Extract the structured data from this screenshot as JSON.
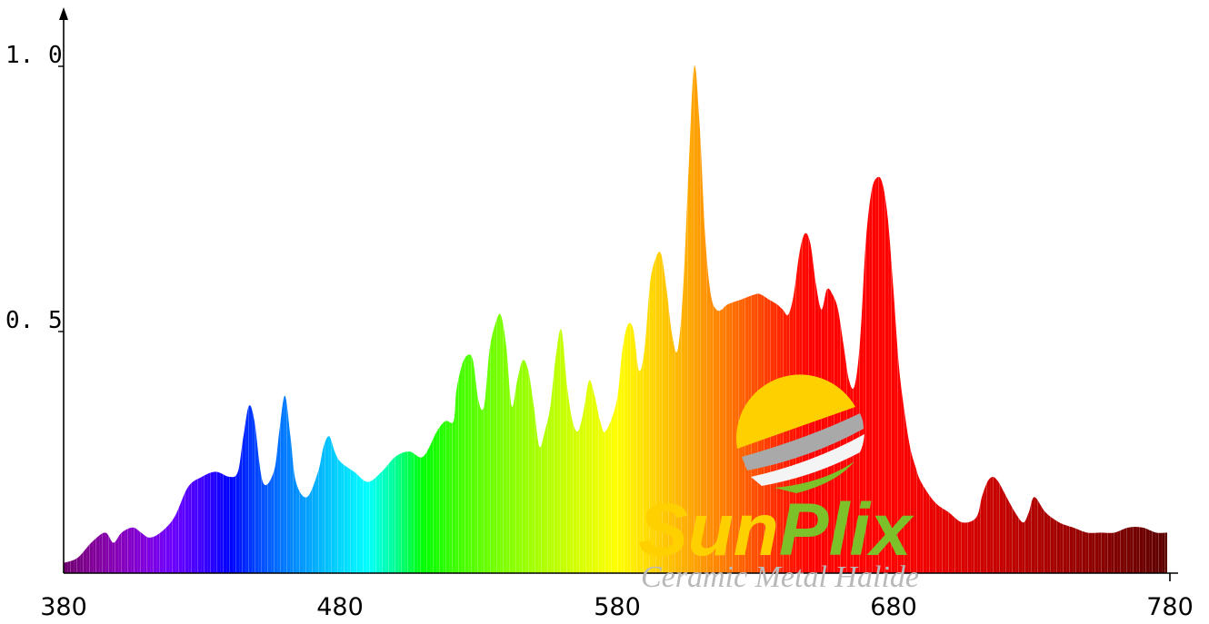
{
  "chart_data": {
    "type": "area",
    "title": "",
    "xlabel": "",
    "ylabel": "",
    "xlim": [
      380,
      780
    ],
    "ylim": [
      0,
      1.0
    ],
    "grid": false,
    "x_ticks": [
      "380",
      "480",
      "580",
      "680",
      "780"
    ],
    "y_ticks": [
      "0. 5",
      "1. 0"
    ],
    "series": [
      {
        "x": [
          380,
          385,
          390,
          395,
          398,
          401,
          405,
          408,
          411,
          415,
          420,
          425,
          430,
          435,
          440,
          443,
          445,
          447,
          449,
          452,
          456,
          458,
          460,
          462,
          464,
          468,
          472,
          474,
          476,
          478,
          480,
          485,
          490,
          495,
          500,
          505,
          510,
          515,
          518,
          521,
          522,
          524,
          526,
          528,
          530,
          532,
          534,
          536,
          538,
          540,
          542,
          544,
          546,
          548,
          550,
          552,
          554,
          556,
          558,
          560,
          562,
          564,
          566,
          568,
          570,
          572,
          574,
          576,
          580,
          582,
          584,
          586,
          588,
          590,
          592,
          594,
          596,
          598,
          600,
          602,
          604,
          606,
          608,
          610,
          612,
          614,
          616,
          618,
          620,
          625,
          630,
          632,
          635,
          638,
          640,
          642,
          644,
          646,
          648,
          650,
          652,
          654,
          656,
          658,
          660,
          662,
          664,
          666,
          668,
          670,
          672,
          674,
          676,
          678,
          680,
          682,
          684,
          686,
          688,
          690,
          695,
          700,
          705,
          710,
          712,
          714,
          716,
          718,
          720,
          724,
          727,
          729,
          731,
          735,
          740,
          745,
          750,
          755,
          760,
          765,
          770,
          775,
          779
        ],
        "y": [
          0.02,
          0.03,
          0.06,
          0.08,
          0.06,
          0.08,
          0.09,
          0.08,
          0.07,
          0.08,
          0.11,
          0.17,
          0.19,
          0.2,
          0.19,
          0.2,
          0.27,
          0.33,
          0.3,
          0.18,
          0.2,
          0.28,
          0.35,
          0.27,
          0.18,
          0.15,
          0.2,
          0.25,
          0.27,
          0.24,
          0.22,
          0.2,
          0.18,
          0.2,
          0.23,
          0.24,
          0.23,
          0.28,
          0.3,
          0.3,
          0.36,
          0.41,
          0.43,
          0.42,
          0.34,
          0.33,
          0.44,
          0.49,
          0.51,
          0.45,
          0.33,
          0.38,
          0.42,
          0.4,
          0.33,
          0.25,
          0.28,
          0.33,
          0.43,
          0.48,
          0.37,
          0.3,
          0.28,
          0.32,
          0.38,
          0.35,
          0.3,
          0.28,
          0.34,
          0.44,
          0.49,
          0.48,
          0.4,
          0.44,
          0.57,
          0.62,
          0.63,
          0.56,
          0.47,
          0.44,
          0.56,
          0.8,
          1.0,
          0.88,
          0.66,
          0.55,
          0.52,
          0.52,
          0.53,
          0.54,
          0.55,
          0.55,
          0.54,
          0.53,
          0.52,
          0.51,
          0.55,
          0.63,
          0.67,
          0.65,
          0.57,
          0.52,
          0.56,
          0.55,
          0.52,
          0.45,
          0.38,
          0.37,
          0.46,
          0.65,
          0.75,
          0.78,
          0.77,
          0.7,
          0.56,
          0.41,
          0.32,
          0.25,
          0.21,
          0.18,
          0.14,
          0.12,
          0.1,
          0.11,
          0.15,
          0.18,
          0.19,
          0.18,
          0.16,
          0.12,
          0.1,
          0.12,
          0.15,
          0.12,
          0.1,
          0.09,
          0.08,
          0.08,
          0.08,
          0.09,
          0.09,
          0.08,
          0.08
        ]
      }
    ]
  },
  "logo": {
    "brand_sun": "Sun",
    "brand_plix": "Plix",
    "tagline": "Ceramic Metal Halide",
    "colors": {
      "sun_yellow": "#ffd000",
      "plix_green": "#7cc12a",
      "stripe_gray": "#a9a9a9",
      "stripe_white": "#ffffff"
    }
  }
}
